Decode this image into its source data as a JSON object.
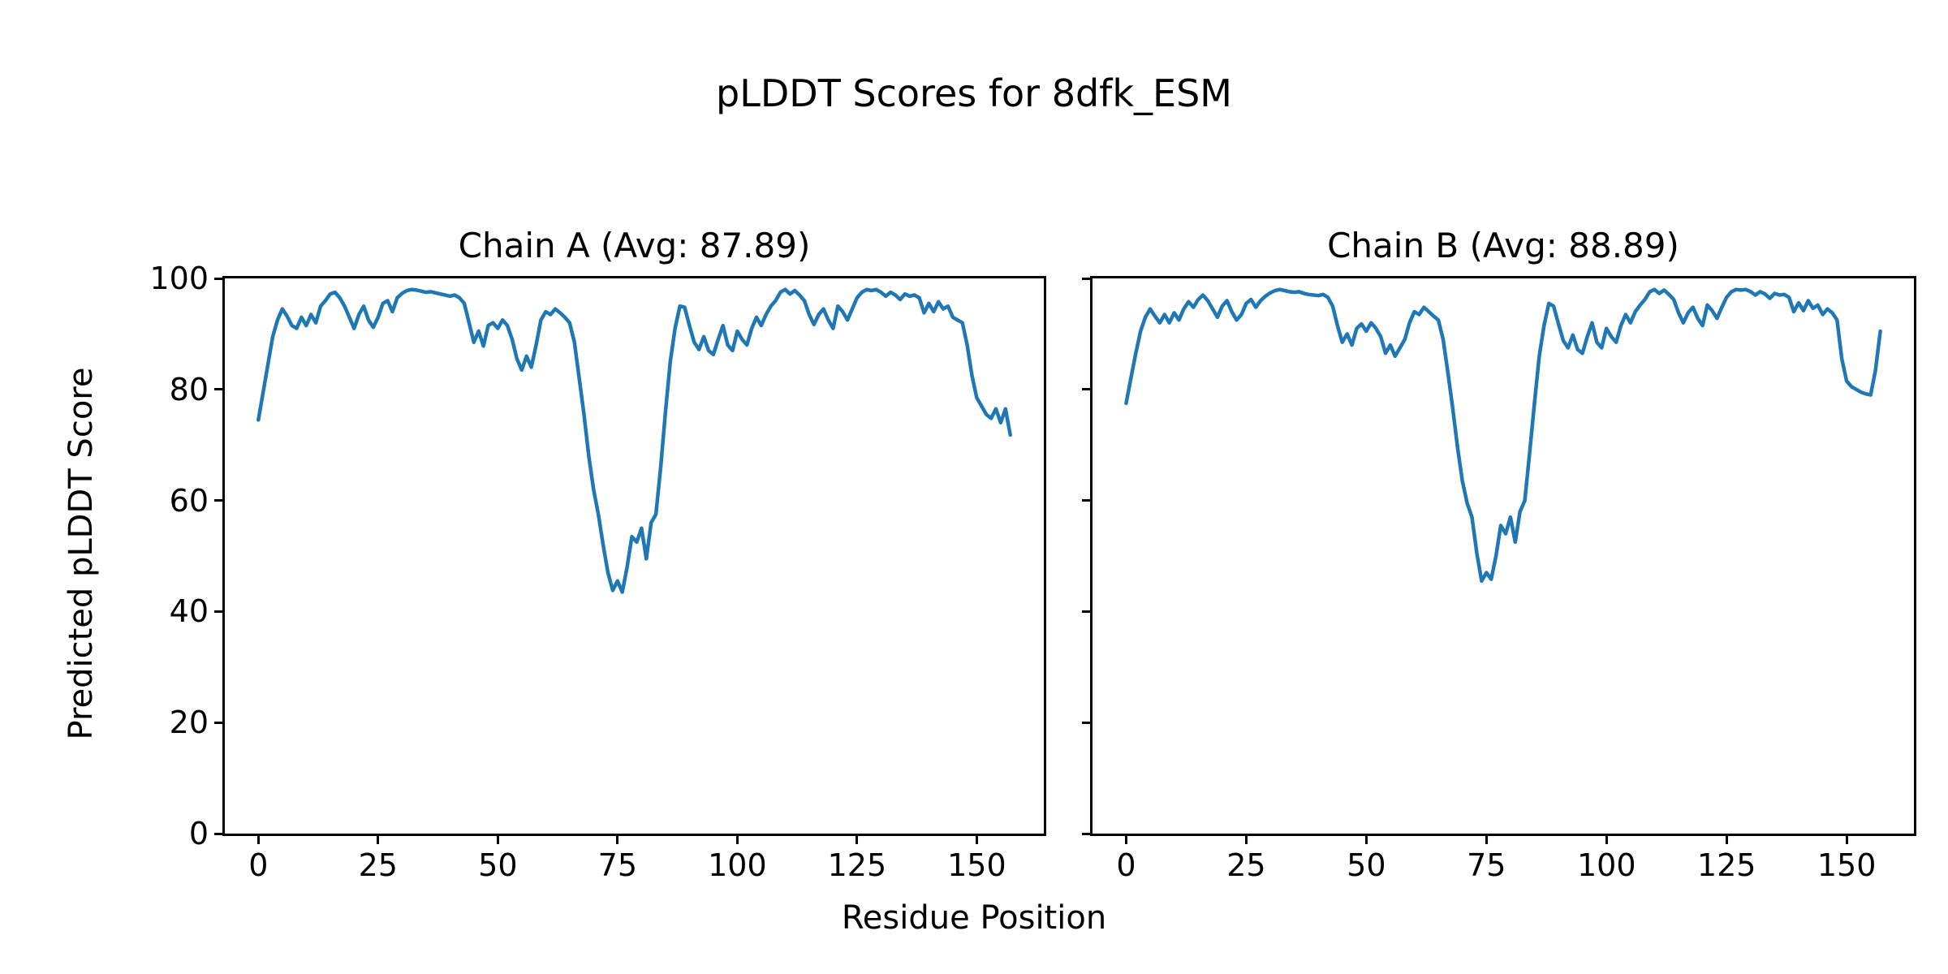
{
  "figure": {
    "suptitle": "pLDDT Scores for 8dfk_ESM",
    "xlabel": "Residue Position",
    "ylabel": "Predicted pLDDT Score"
  },
  "colors": {
    "line": "#1f77b4",
    "text": "#000000",
    "background": "#ffffff",
    "spine": "#000000"
  },
  "chart_data": [
    {
      "type": "line",
      "title": "Chain A (Avg: 87.89)",
      "chain": "A",
      "avg": 87.89,
      "xlabel": "Residue Position",
      "ylabel": "Predicted pLDDT Score",
      "xlim": [
        -7,
        164
      ],
      "ylim": [
        0,
        100
      ],
      "xticks": [
        0,
        25,
        50,
        75,
        100,
        125,
        150
      ],
      "yticks": [
        0,
        20,
        40,
        60,
        80,
        100
      ],
      "show_ytick_labels": true,
      "grid": false,
      "x_range": [
        0,
        157
      ],
      "series": [
        {
          "name": "pLDDT",
          "x_start": 0,
          "x_step": 1,
          "values": [
            74.5,
            79.5,
            84.5,
            89.5,
            92.5,
            94.5,
            93.2,
            91.5,
            91.0,
            93.0,
            91.5,
            93.5,
            92.0,
            95.0,
            96.0,
            97.2,
            97.5,
            96.5,
            95.0,
            93.0,
            91.0,
            93.5,
            95.0,
            92.5,
            91.2,
            93.0,
            95.5,
            96.0,
            94.0,
            96.5,
            97.3,
            97.8,
            98.0,
            97.9,
            97.7,
            97.5,
            97.6,
            97.4,
            97.2,
            97.0,
            96.8,
            97.0,
            96.5,
            95.5,
            92.0,
            88.5,
            90.5,
            87.8,
            91.5,
            92.0,
            91.0,
            92.5,
            91.5,
            89.0,
            85.5,
            83.5,
            86.0,
            84.0,
            88.0,
            92.5,
            94.0,
            93.5,
            94.5,
            93.8,
            93.0,
            92.0,
            88.5,
            82.0,
            75.5,
            68.0,
            62.0,
            57.5,
            52.0,
            47.0,
            43.8,
            45.5,
            43.5,
            48.0,
            53.5,
            52.5,
            55.0,
            49.5,
            56.0,
            57.5,
            66.0,
            76.0,
            85.0,
            91.0,
            95.0,
            94.8,
            91.5,
            88.5,
            87.2,
            89.5,
            87.0,
            86.3,
            89.0,
            91.5,
            88.0,
            87.0,
            90.5,
            89.0,
            88.0,
            91.0,
            93.0,
            91.5,
            93.5,
            95.0,
            96.0,
            97.5,
            98.0,
            97.2,
            97.8,
            97.0,
            96.0,
            93.5,
            91.7,
            93.5,
            94.5,
            92.5,
            91.0,
            95.0,
            94.0,
            92.5,
            94.5,
            96.5,
            97.5,
            98.0,
            97.8,
            98.0,
            97.5,
            96.8,
            97.5,
            97.0,
            96.2,
            97.2,
            96.8,
            97.0,
            96.5,
            93.8,
            95.5,
            94.0,
            95.8,
            94.5,
            95.0,
            93.0,
            92.5,
            92.0,
            88.0,
            82.5,
            78.5,
            77.0,
            75.5,
            74.8,
            76.5,
            74.0,
            76.5,
            71.8
          ]
        }
      ]
    },
    {
      "type": "line",
      "title": "Chain B (Avg: 88.89)",
      "chain": "B",
      "avg": 88.89,
      "xlabel": "Residue Position",
      "ylabel": "Predicted pLDDT Score",
      "xlim": [
        -7,
        164
      ],
      "ylim": [
        0,
        100
      ],
      "xticks": [
        0,
        25,
        50,
        75,
        100,
        125,
        150
      ],
      "yticks": [
        0,
        20,
        40,
        60,
        80,
        100
      ],
      "show_ytick_labels": false,
      "grid": false,
      "x_range": [
        0,
        157
      ],
      "series": [
        {
          "name": "pLDDT",
          "x_start": 0,
          "x_step": 1,
          "values": [
            77.5,
            82.0,
            86.5,
            90.5,
            93.0,
            94.5,
            93.2,
            92.0,
            93.5,
            92.0,
            93.8,
            92.5,
            94.5,
            95.8,
            94.8,
            96.2,
            97.0,
            96.0,
            94.5,
            93.0,
            95.0,
            96.0,
            94.0,
            92.5,
            93.5,
            95.5,
            96.2,
            94.8,
            96.0,
            96.8,
            97.4,
            97.8,
            98.0,
            97.8,
            97.6,
            97.5,
            97.6,
            97.3,
            97.1,
            97.0,
            96.9,
            97.1,
            96.6,
            95.0,
            91.5,
            88.5,
            90.0,
            88.0,
            91.0,
            91.8,
            90.5,
            92.0,
            91.0,
            89.5,
            86.5,
            88.0,
            86.0,
            87.5,
            89.0,
            92.0,
            94.0,
            93.5,
            94.8,
            94.0,
            93.2,
            92.5,
            89.0,
            83.0,
            76.5,
            69.5,
            63.5,
            59.5,
            57.0,
            50.5,
            45.5,
            47.0,
            45.8,
            50.0,
            55.5,
            54.0,
            57.0,
            52.5,
            58.0,
            60.0,
            68.5,
            77.5,
            86.0,
            91.5,
            95.5,
            95.0,
            91.8,
            88.8,
            87.5,
            89.8,
            87.2,
            86.5,
            89.5,
            92.0,
            88.5,
            87.5,
            91.0,
            89.5,
            88.5,
            91.5,
            93.5,
            92.0,
            94.0,
            95.2,
            96.2,
            97.6,
            98.0,
            97.3,
            97.9,
            97.1,
            96.2,
            93.8,
            92.0,
            93.8,
            94.8,
            92.8,
            91.5,
            95.2,
            94.2,
            92.8,
            94.8,
            96.6,
            97.6,
            98.0,
            97.9,
            98.0,
            97.6,
            97.0,
            97.6,
            97.2,
            96.4,
            97.3,
            97.0,
            97.1,
            96.6,
            94.0,
            95.6,
            94.2,
            96.0,
            94.6,
            95.2,
            93.5,
            94.5,
            93.8,
            92.5,
            85.5,
            81.5,
            80.5,
            80.0,
            79.5,
            79.2,
            79.0,
            83.5,
            90.5
          ]
        }
      ]
    }
  ]
}
